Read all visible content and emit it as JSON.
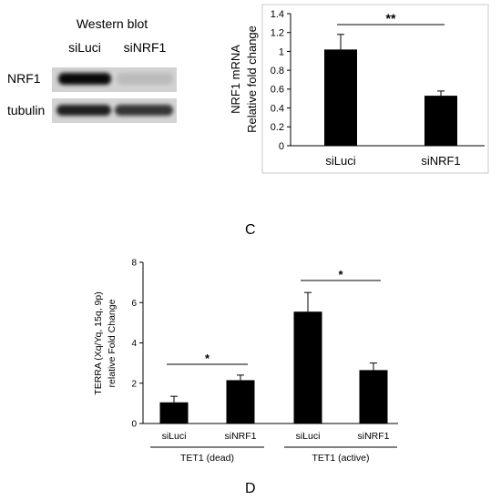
{
  "blot": {
    "title": "Western blot",
    "lanes": [
      "siLuci",
      "siNRF1"
    ],
    "rows": [
      {
        "label": "NRF1",
        "intensity": [
          0.95,
          0.1
        ]
      },
      {
        "label": "tubulin",
        "intensity": [
          0.85,
          0.75
        ]
      }
    ]
  },
  "panel_c_label": "C",
  "panel_d_label": "D",
  "chart_data": [
    {
      "type": "bar",
      "title": "",
      "categories": [
        "siLuci",
        "siNRF1"
      ],
      "values": [
        1.02,
        0.53
      ],
      "errors": [
        0.16,
        0.05
      ],
      "ylabel_lines": [
        "NRF1 mRNA",
        "Relative fold change"
      ],
      "ylim": [
        0,
        1.4
      ],
      "yticks": [
        "0",
        "0.2",
        "0.4",
        "0.6",
        "0.8",
        "1",
        "1.2",
        "1.4"
      ],
      "grid": false,
      "significance": [
        {
          "between": [
            0,
            1
          ],
          "label": "**"
        }
      ]
    },
    {
      "type": "bar",
      "title": "",
      "categories": [
        "siLuci",
        "siNRF1",
        "siLuci",
        "siNRF1"
      ],
      "values": [
        1.05,
        2.15,
        5.55,
        2.65
      ],
      "errors": [
        0.3,
        0.25,
        0.95,
        0.35
      ],
      "ylabel_lines": [
        "TERRA (Xq/Yq, 15q, 9p)",
        "relative Fold Change"
      ],
      "ylim": [
        0,
        8
      ],
      "yticks": [
        "0",
        "2",
        "4",
        "6",
        "8"
      ],
      "grid": false,
      "groups": [
        {
          "label": "TET1 (dead)",
          "indices": [
            0,
            1
          ]
        },
        {
          "label": "TET1 (active)",
          "indices": [
            2,
            3
          ]
        }
      ],
      "significance": [
        {
          "between": [
            0,
            1
          ],
          "label": "*"
        },
        {
          "between": [
            2,
            3
          ],
          "label": "*"
        }
      ]
    }
  ]
}
